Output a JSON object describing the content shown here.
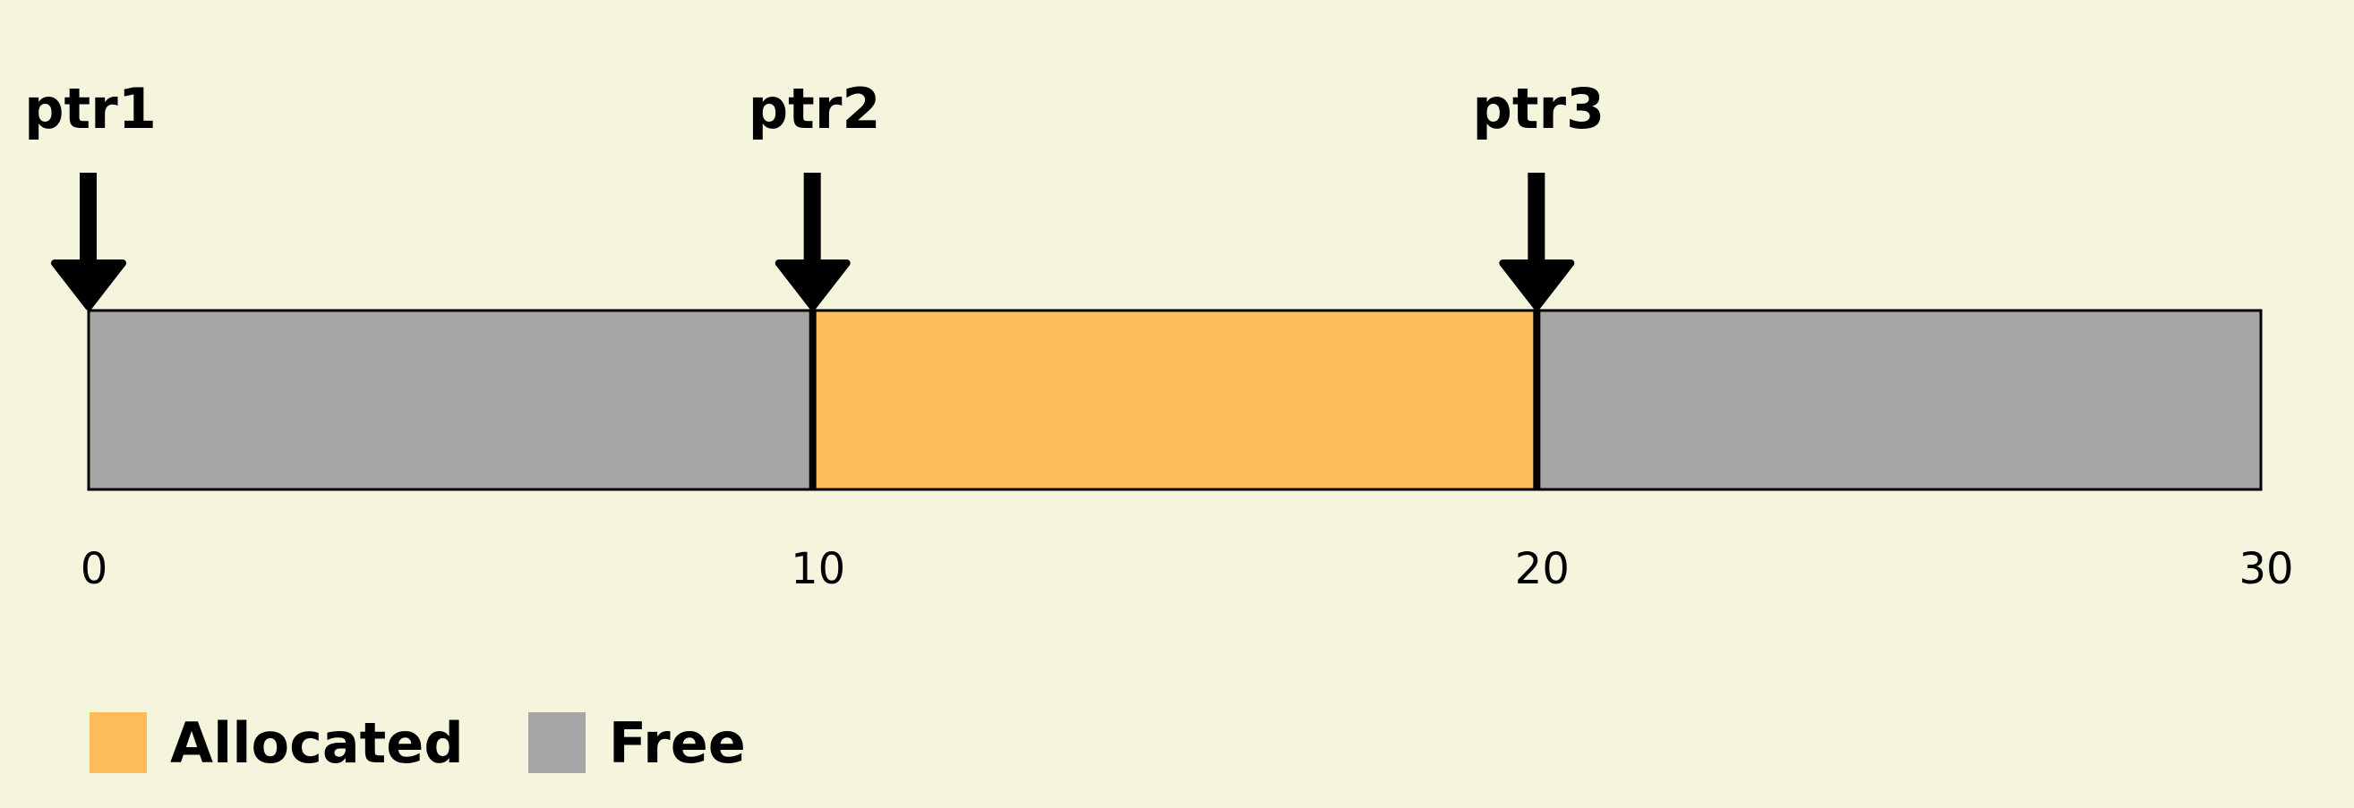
{
  "diagram": {
    "axis": {
      "min": 0,
      "max": 30
    },
    "blocks": [
      {
        "start": 0,
        "end": 10,
        "state": "free"
      },
      {
        "start": 10,
        "end": 20,
        "state": "allocated"
      },
      {
        "start": 20,
        "end": 30,
        "state": "free"
      }
    ],
    "pointers": [
      {
        "label": "ptr1",
        "position": 0
      },
      {
        "label": "ptr2",
        "position": 10
      },
      {
        "label": "ptr3",
        "position": 20
      }
    ],
    "ticks": [
      {
        "value": 0,
        "label": "0"
      },
      {
        "value": 10,
        "label": "10"
      },
      {
        "value": 20,
        "label": "20"
      },
      {
        "value": 30,
        "label": "30"
      }
    ]
  },
  "colors": {
    "allocated": "#fdbd5b",
    "free": "#a6a6a6",
    "background": "#f5f4dc",
    "outline": "#000000"
  },
  "legend": {
    "allocated_label": "Allocated",
    "free_label": "Free"
  }
}
